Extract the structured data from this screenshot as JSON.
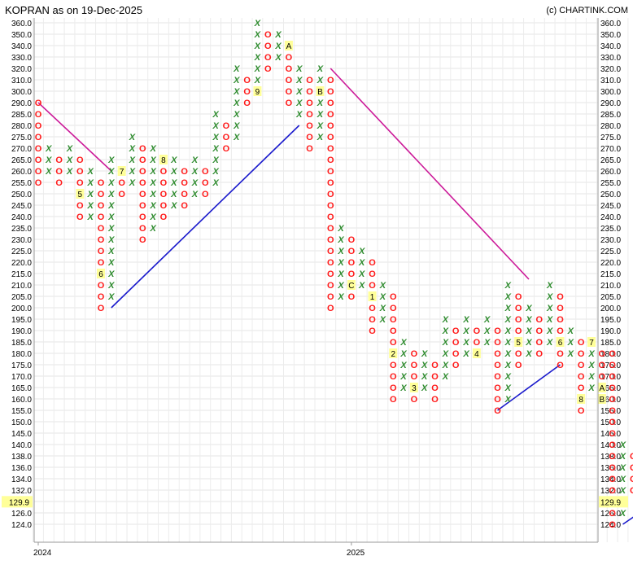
{
  "title": "KOPRAN as on 19-Dec-2025",
  "credit": "(c) CHARTINK.COM",
  "chart_data": {
    "type": "point-and-figure",
    "ticks": [
      "360.0",
      "350.0",
      "340.0",
      "330.0",
      "320.0",
      "310.0",
      "300.0",
      "290.0",
      "285.0",
      "280.0",
      "275.0",
      "270.0",
      "265.0",
      "260.0",
      "255.0",
      "250.0",
      "245.0",
      "240.0",
      "235.0",
      "230.0",
      "225.0",
      "220.0",
      "215.0",
      "210.0",
      "205.0",
      "200.0",
      "195.0",
      "190.0",
      "185.0",
      "180.0",
      "175.0",
      "170.0",
      "165.0",
      "160.0",
      "155.0",
      "150.0",
      "145.0",
      "140.0",
      "138.0",
      "136.0",
      "134.0",
      "132.0",
      "130.0",
      "126.0",
      "124.0"
    ],
    "last_price": "129.9",
    "x_labels": [
      {
        "text": "2024",
        "col": 0
      },
      {
        "text": "2025",
        "col": 30
      }
    ],
    "colors": {
      "x": "#2e8b2e",
      "o": "#ff1a1a",
      "resistance": "#cc1a99",
      "support": "#1a1acc",
      "highlight": "#ffff99"
    },
    "columns": [
      {
        "t": "O",
        "top": 290.0,
        "bot": 255.0
      },
      {
        "t": "X",
        "top": 270.0,
        "bot": 260.0
      },
      {
        "t": "O",
        "top": 265.0,
        "bot": 255.0
      },
      {
        "t": "X",
        "top": 270.0,
        "bot": 260.0
      },
      {
        "t": "O",
        "top": 265.0,
        "bot": 240.0,
        "m": [
          [
            250.0,
            "5"
          ],
          [
            245.0,
            "O"
          ]
        ]
      },
      {
        "t": "X",
        "top": 260.0,
        "bot": 240.0
      },
      {
        "t": "O",
        "top": 255.0,
        "bot": 200.0,
        "m": [
          [
            215.0,
            "6"
          ]
        ]
      },
      {
        "t": "X",
        "top": 265.0,
        "bot": 205.0
      },
      {
        "t": "O",
        "top": 260.0,
        "bot": 250.0,
        "m": [
          [
            260.0,
            "7"
          ]
        ]
      },
      {
        "t": "X",
        "top": 275.0,
        "bot": 255.0
      },
      {
        "t": "O",
        "top": 270.0,
        "bot": 230.0
      },
      {
        "t": "X",
        "top": 270.0,
        "bot": 235.0
      },
      {
        "t": "O",
        "top": 265.0,
        "bot": 240.0,
        "m": [
          [
            265.0,
            "8"
          ]
        ]
      },
      {
        "t": "X",
        "top": 265.0,
        "bot": 245.0
      },
      {
        "t": "O",
        "top": 260.0,
        "bot": 245.0
      },
      {
        "t": "X",
        "top": 265.0,
        "bot": 250.0
      },
      {
        "t": "O",
        "top": 260.0,
        "bot": 250.0
      },
      {
        "t": "X",
        "top": 285.0,
        "bot": 255.0
      },
      {
        "t": "O",
        "top": 280.0,
        "bot": 270.0
      },
      {
        "t": "X",
        "top": 320.0,
        "bot": 275.0
      },
      {
        "t": "O",
        "top": 310.0,
        "bot": 290.0
      },
      {
        "t": "X",
        "top": 360.0,
        "bot": 300.0,
        "m": [
          [
            300.0,
            "9"
          ]
        ]
      },
      {
        "t": "O",
        "top": 350.0,
        "bot": 320.0
      },
      {
        "t": "X",
        "top": 350.0,
        "bot": 330.0
      },
      {
        "t": "O",
        "top": 340.0,
        "bot": 290.0,
        "m": [
          [
            340.0,
            "A"
          ]
        ]
      },
      {
        "t": "X",
        "top": 320.0,
        "bot": 285.0
      },
      {
        "t": "O",
        "top": 310.0,
        "bot": 270.0
      },
      {
        "t": "X",
        "top": 320.0,
        "bot": 275.0,
        "m": [
          [
            300.0,
            "B"
          ]
        ]
      },
      {
        "t": "O",
        "top": 310.0,
        "bot": 200.0
      },
      {
        "t": "X",
        "top": 235.0,
        "bot": 205.0
      },
      {
        "t": "O",
        "top": 230.0,
        "bot": 205.0,
        "m": [
          [
            210.0,
            "C"
          ]
        ]
      },
      {
        "t": "X",
        "top": 225.0,
        "bot": 210.0
      },
      {
        "t": "O",
        "top": 220.0,
        "bot": 190.0,
        "m": [
          [
            205.0,
            "1"
          ]
        ]
      },
      {
        "t": "X",
        "top": 210.0,
        "bot": 195.0
      },
      {
        "t": "O",
        "top": 205.0,
        "bot": 160.0,
        "m": [
          [
            180.0,
            "2"
          ]
        ]
      },
      {
        "t": "X",
        "top": 185.0,
        "bot": 165.0
      },
      {
        "t": "O",
        "top": 180.0,
        "bot": 160.0,
        "m": [
          [
            165.0,
            "3"
          ]
        ]
      },
      {
        "t": "X",
        "top": 180.0,
        "bot": 165.0
      },
      {
        "t": "O",
        "top": 175.0,
        "bot": 160.0
      },
      {
        "t": "X",
        "top": 195.0,
        "bot": 170.0
      },
      {
        "t": "O",
        "top": 190.0,
        "bot": 175.0
      },
      {
        "t": "X",
        "top": 195.0,
        "bot": 180.0
      },
      {
        "t": "O",
        "top": 190.0,
        "bot": 180.0,
        "m": [
          [
            180.0,
            "4"
          ]
        ]
      },
      {
        "t": "X",
        "top": 195.0,
        "bot": 185.0
      },
      {
        "t": "O",
        "top": 190.0,
        "bot": 155.0
      },
      {
        "t": "X",
        "top": 210.0,
        "bot": 160.0
      },
      {
        "t": "O",
        "top": 205.0,
        "bot": 175.0,
        "m": [
          [
            185.0,
            "5"
          ]
        ]
      },
      {
        "t": "X",
        "top": 200.0,
        "bot": 180.0
      },
      {
        "t": "O",
        "top": 195.0,
        "bot": 180.0
      },
      {
        "t": "X",
        "top": 210.0,
        "bot": 185.0
      },
      {
        "t": "O",
        "top": 205.0,
        "bot": 175.0,
        "m": [
          [
            185.0,
            "6"
          ]
        ]
      },
      {
        "t": "X",
        "top": 190.0,
        "bot": 180.0
      },
      {
        "t": "O",
        "top": 185.0,
        "bot": 155.0,
        "m": [
          [
            160.0,
            "8"
          ]
        ]
      },
      {
        "t": "X",
        "top": 185.0,
        "bot": 165.0,
        "m": [
          [
            185.0,
            "7"
          ]
        ]
      },
      {
        "t": "O",
        "top": 180.0,
        "bot": 160.0,
        "m": [
          [
            165.0,
            "A"
          ],
          [
            160.0,
            "B"
          ]
        ]
      },
      {
        "t": "O",
        "top": 180.0,
        "bot": 124.0
      },
      {
        "t": "X",
        "top": 140.0,
        "bot": 126.0
      },
      {
        "t": "O",
        "top": 138.0,
        "bot": 132.0
      },
      {
        "t": "X",
        "top": 145.0,
        "bot": 134.0,
        "m": [
          [
            136.0,
            "C"
          ]
        ]
      },
      {
        "t": "O",
        "top": 140.0,
        "bot": 129.9
      }
    ],
    "trendlines": [
      {
        "kind": "resistance",
        "from": [
          0,
          290.0
        ],
        "to": [
          7,
          260.0
        ]
      },
      {
        "kind": "support",
        "from": [
          7,
          200.0
        ],
        "to": [
          25,
          280.0
        ]
      },
      {
        "kind": "resistance",
        "from": [
          28,
          320.0
        ],
        "to": [
          47,
          212.5
        ]
      },
      {
        "kind": "support",
        "from": [
          44,
          155.0
        ],
        "to": [
          50,
          175.0
        ]
      },
      {
        "kind": "support",
        "from": [
          56,
          124.0
        ],
        "to": [
          60,
          131.0
        ]
      }
    ]
  }
}
